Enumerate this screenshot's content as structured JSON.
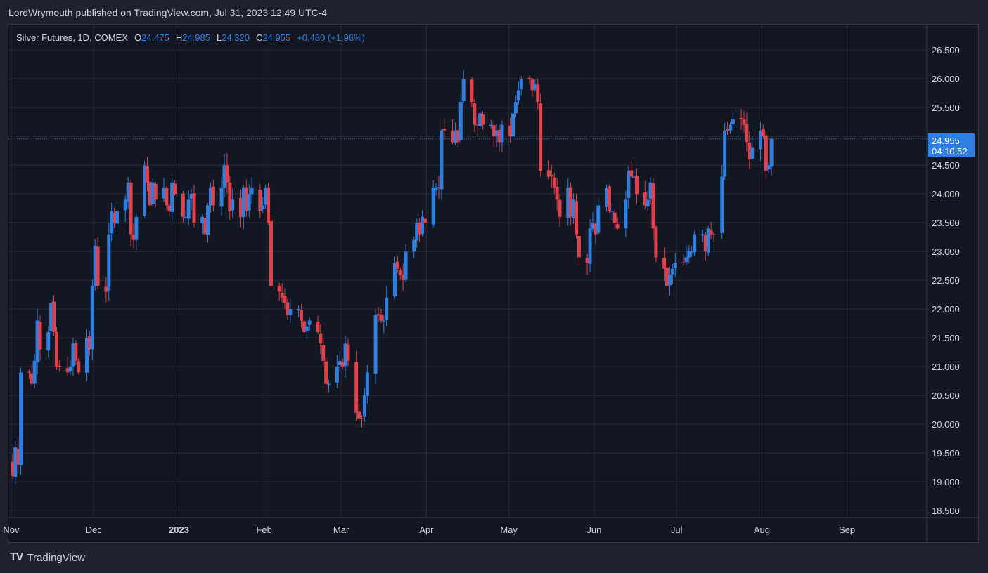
{
  "header": {
    "publish_line": "LordWrymouth published on TradingView.com, Jul 31, 2023 12:49 UTC-4"
  },
  "legend": {
    "symbol": "Silver Futures, 1D, COMEX",
    "o_label": "O",
    "o_value": "24.475",
    "h_label": "H",
    "h_value": "24.985",
    "l_label": "L",
    "l_value": "24.320",
    "c_label": "C",
    "c_value": "24.955",
    "change": "+0.480 (+1.96%)"
  },
  "price_label": {
    "price": "24.955",
    "countdown": "04:10:52"
  },
  "footer": {
    "brand": "TradingView",
    "mark": "TV"
  },
  "colors": {
    "up": "#2f7fe0",
    "down": "#e0414b",
    "grid": "#2a2e39",
    "axis_text": "#d1d4dc",
    "price_line": "#2f7fe0"
  },
  "chart_data": {
    "type": "candlestick",
    "y_tick_labels": [
      "26.500",
      "26.000",
      "25.500",
      "25.000",
      "24.500",
      "24.000",
      "23.500",
      "23.000",
      "22.500",
      "22.000",
      "21.500",
      "21.000",
      "20.500",
      "20.000",
      "19.500",
      "19.000",
      "18.500"
    ],
    "y_ticks": [
      26.5,
      26.0,
      25.5,
      25.0,
      24.5,
      24.0,
      23.5,
      23.0,
      22.5,
      22.0,
      21.5,
      21.0,
      20.5,
      20.0,
      19.5,
      19.0,
      18.5
    ],
    "ylim": [
      18.38,
      26.94
    ],
    "x_tick_labels": [
      {
        "label": "Nov",
        "date": "2022-11-01",
        "bold": false
      },
      {
        "label": "Dec",
        "date": "2022-12-01",
        "bold": false
      },
      {
        "label": "2023",
        "date": "2023-01-01",
        "bold": true
      },
      {
        "label": "Feb",
        "date": "2023-02-01",
        "bold": false
      },
      {
        "label": "Mar",
        "date": "2023-03-01",
        "bold": false
      },
      {
        "label": "Apr",
        "date": "2023-04-01",
        "bold": false
      },
      {
        "label": "May",
        "date": "2023-05-01",
        "bold": false
      },
      {
        "label": "Jun",
        "date": "2023-06-01",
        "bold": false
      },
      {
        "label": "Jul",
        "date": "2023-07-01",
        "bold": false
      },
      {
        "label": "Aug",
        "date": "2023-08-01",
        "bold": false
      },
      {
        "label": "Sep",
        "date": "2023-09-01",
        "bold": false
      }
    ],
    "xlim": [
      "2022-10-31",
      "2023-09-30"
    ],
    "last_close": 24.955,
    "closes": [
      19.1,
      19.6,
      19.3,
      20.9,
      20.9,
      20.7,
      21.1,
      21.8,
      21.3,
      21.6,
      22.1,
      21.6,
      21.0,
      21.0,
      20.9,
      21.0,
      21.4,
      21.1,
      20.9,
      21.5,
      21.3,
      22.4,
      23.1,
      22.4,
      22.3,
      23.3,
      23.7,
      23.5,
      23.7,
      23.9,
      24.2,
      23.3,
      23.2,
      23.6,
      24.5,
      24.2,
      23.8,
      24.2,
      23.9,
      24.1,
      23.8,
      23.7,
      24.2,
      24.0,
      23.6,
      23.6,
      23.9,
      24.0,
      23.5,
      23.6,
      23.3,
      23.8,
      24.1,
      23.8,
      24.1,
      24.5,
      24.2,
      23.7,
      23.9,
      23.6,
      24.1,
      23.7,
      24.0,
      24.1,
      23.7,
      23.8,
      24.1,
      23.5,
      22.4,
      22.3,
      22.2,
      22.1,
      21.9,
      22.0,
      22.0,
      21.8,
      21.6,
      21.7,
      21.8,
      21.6,
      21.4,
      21.1,
      20.7,
      20.7,
      21.0,
      21.1,
      21.0,
      21.4,
      21.1,
      20.2,
      20.1,
      20.1,
      20.5,
      20.9,
      21.9,
      21.9,
      21.8,
      21.8,
      22.2,
      22.8,
      22.7,
      22.6,
      22.5,
      23.0,
      23.2,
      23.5,
      23.3,
      23.6,
      23.5,
      24.1,
      24.1,
      24.1,
      25.1,
      25.1,
      24.9,
      25.1,
      24.9,
      25.6,
      26.0,
      25.6,
      25.2,
      25.2,
      25.4,
      25.2,
      25.2,
      25.0,
      25.1,
      24.9,
      25.2,
      25.0,
      25.4,
      25.6,
      25.8,
      26.0,
      26.0,
      25.8,
      25.9,
      25.6,
      24.4,
      24.3,
      24.3,
      24.1,
      23.9,
      23.6,
      24.1,
      23.6,
      23.9,
      23.3,
      22.9,
      22.8,
      23.4,
      23.5,
      23.3,
      23.8,
      24.1,
      23.7,
      23.7,
      23.5,
      23.4,
      23.9,
      24.4,
      24.3,
      24.3,
      24.0,
      23.8,
      23.9,
      24.2,
      23.4,
      22.9,
      22.7,
      22.4,
      22.6,
      22.7,
      22.8,
      22.8,
      22.9,
      23.0,
      23.0,
      23.3,
      23.3,
      23.0,
      23.4,
      23.3,
      23.3,
      24.3,
      25.1,
      25.1,
      25.2,
      25.3,
      25.3,
      25.2,
      24.9,
      24.6,
      24.8,
      25.1,
      25.0,
      24.4,
      24.5,
      24.955
    ]
  }
}
